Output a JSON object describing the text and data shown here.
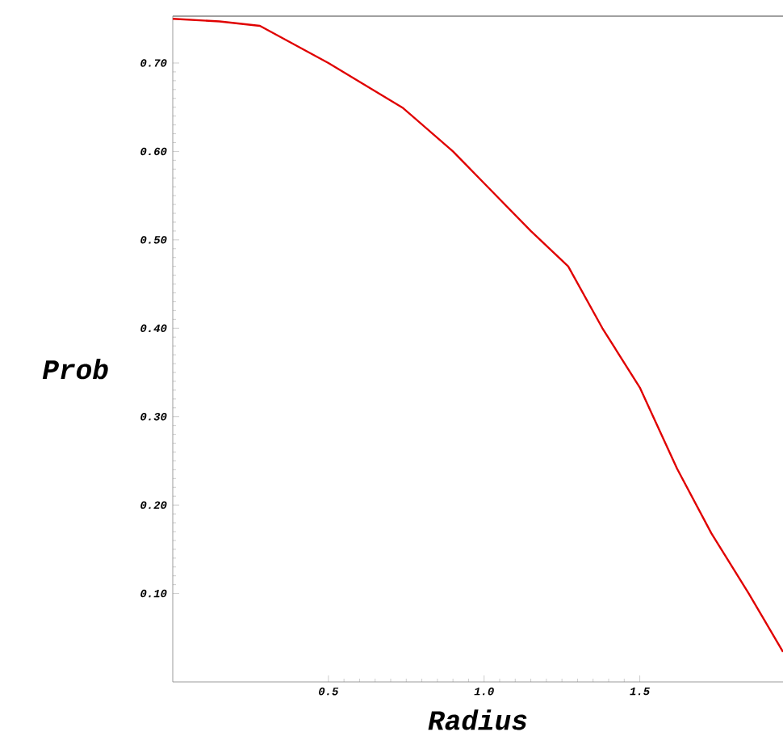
{
  "chart_data": {
    "type": "line",
    "xlabel": "Radius",
    "ylabel": "Prob",
    "x": [
      0,
      0.15,
      0.28,
      0.5,
      0.74,
      0.9,
      1.05,
      1.15,
      1.27,
      1.38,
      1.5,
      1.62,
      1.73,
      1.85,
      1.96
    ],
    "series": [
      {
        "color": "#e00000",
        "values": [
          0.75,
          0.747,
          0.742,
          0.7,
          0.649,
          0.6,
          0.546,
          0.51,
          0.47,
          0.4,
          0.333,
          0.241,
          0.168,
          0.1,
          0.034
        ]
      }
    ],
    "xlim": [
      0,
      1.96
    ],
    "ylim": [
      0,
      0.753
    ],
    "xticks": [
      {
        "value": 0.5,
        "label": "0.5"
      },
      {
        "value": 1.0,
        "label": "1.0"
      },
      {
        "value": 1.5,
        "label": "1.5"
      }
    ],
    "yticks": [
      {
        "value": 0.1,
        "label": "0.10"
      },
      {
        "value": 0.2,
        "label": "0.20"
      },
      {
        "value": 0.3,
        "label": "0.30"
      },
      {
        "value": 0.4,
        "label": "0.40"
      },
      {
        "value": 0.5,
        "label": "0.50"
      },
      {
        "value": 0.6,
        "label": "0.60"
      },
      {
        "value": 0.7,
        "label": "0.70"
      }
    ],
    "marker": "none",
    "line_style": "solid"
  }
}
